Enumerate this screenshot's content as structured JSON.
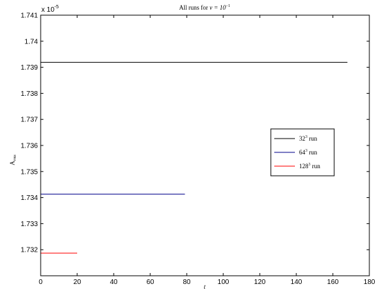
{
  "chart_data": {
    "type": "line",
    "title_prefix": "All runs for ",
    "title_math": "ν = 10",
    "title_sup": "−1",
    "xlabel": "t",
    "ylabel_main": "A",
    "ylabel_sub": "rms",
    "y_multiplier_base": "x 10",
    "y_multiplier_exp": "-5",
    "xlim": [
      0,
      180
    ],
    "ylim": [
      1.731,
      1.741
    ],
    "x_ticks": [
      0,
      20,
      40,
      60,
      80,
      100,
      120,
      140,
      160,
      180
    ],
    "y_ticks": [
      1.732,
      1.733,
      1.734,
      1.735,
      1.736,
      1.737,
      1.738,
      1.739,
      1.74,
      1.741
    ],
    "y_tick_labels": [
      "1.732",
      "1.733",
      "1.734",
      "1.735",
      "1.736",
      "1.737",
      "1.738",
      "1.739",
      "1.74",
      "1.741"
    ],
    "legend_position": "right",
    "series": [
      {
        "base": "32",
        "sup": "3",
        "suffix": " run",
        "color": "#000000",
        "x": [
          0,
          168
        ],
        "y": [
          1.73919,
          1.73919
        ]
      },
      {
        "base": "64",
        "sup": "3",
        "suffix": " run",
        "color": "#00008b",
        "x": [
          0,
          79
        ],
        "y": [
          1.73413,
          1.73413
        ]
      },
      {
        "base": "128",
        "sup": "3",
        "suffix": " run",
        "color": "#ff0000",
        "x": [
          0,
          20
        ],
        "y": [
          1.73187,
          1.73187
        ]
      }
    ]
  }
}
